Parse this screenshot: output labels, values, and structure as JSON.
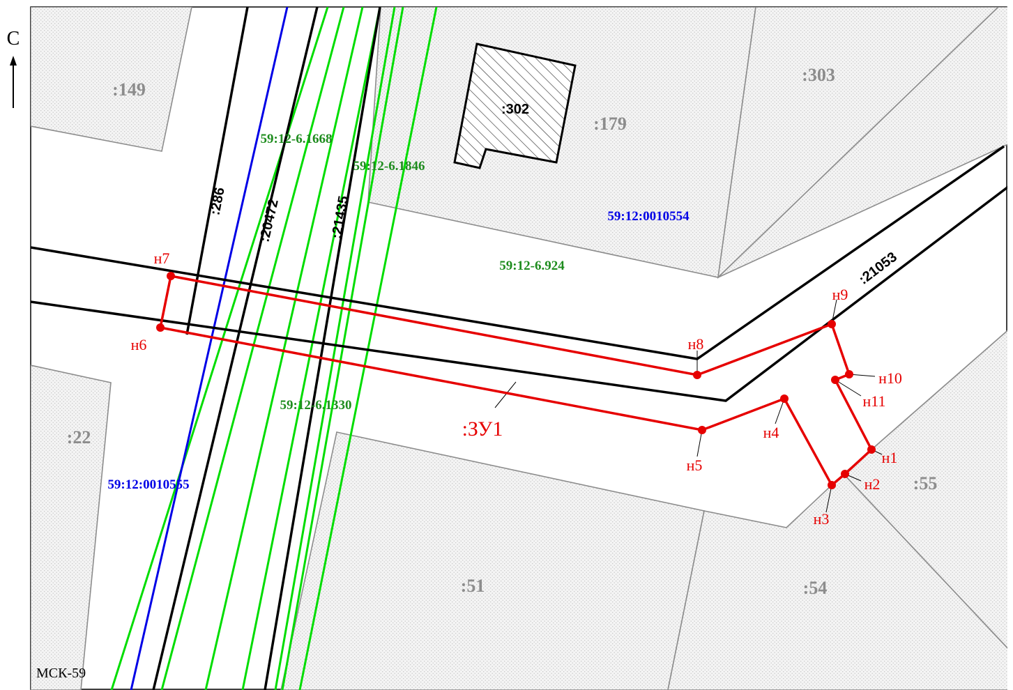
{
  "colors": {
    "parcel_gray": "#8c8c8c",
    "zone_green": "#00dd00",
    "zone_label_green": "#1e8c1e",
    "quarter_blue": "#0000e6",
    "project_red": "#e60000",
    "line_black": "#000000"
  },
  "north": {
    "letter": "С",
    "arrow_icon": "north-arrow-icon"
  },
  "crs": "МСК-59",
  "parcels": {
    "p149": ":149",
    "p303": ":303",
    "p302": ":302",
    "p179": ":179",
    "p22": ":22",
    "p55": ":55",
    "p51": ":51",
    "p54": ":54"
  },
  "linear": {
    "l286": ":286",
    "l20472": ":20472",
    "l21435": ":21435",
    "l21053": ":21053"
  },
  "zones": {
    "z1668": "59:12-6.1668",
    "z1846": "59:12-6.1846",
    "z924": "59:12-6.924",
    "z1330": "59:12-6.1330"
  },
  "quarters": {
    "q554": "59:12:0010554",
    "q555": "59:12:0010555"
  },
  "project_parcel": ":ЗУ1",
  "points": {
    "n1": "н1",
    "n2": "н2",
    "n3": "н3",
    "n4": "н4",
    "n5": "н5",
    "n6": "н6",
    "n7": "н7",
    "n8": "н8",
    "n9": "н9",
    "n10": "н10",
    "n11": "н11"
  }
}
